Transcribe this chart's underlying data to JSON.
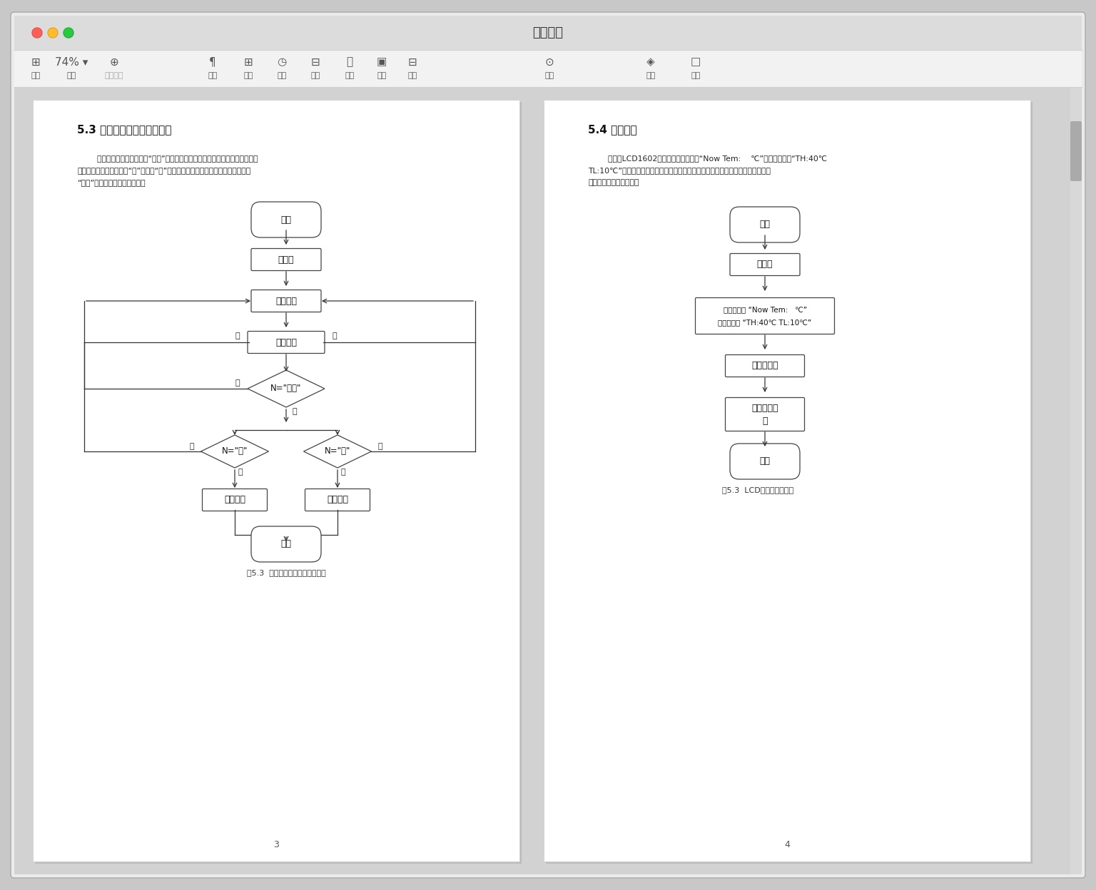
{
  "title": "软件设计",
  "bg_outer": "#c8c8c8",
  "window_bg": "#ebebeb",
  "page_bg": "#ffffff",
  "red_btn": "#ff5f57",
  "yellow_btn": "#ffbd2e",
  "green_btn": "#28c840",
  "section1_title": "5.3 上下限温度阈値调整程序",
  "section2_title": "5.4 显示程序",
  "para1_lines": [
    "        初始化按键，如果检测到“设置”按键按下，则进入修改最高温度値和最低温度",
    "値模式，此模式通过按键“加”和按键“减”调节最高温度値和最低温度値，再次按下",
    "“设置”按键，则退出修改模式。"
  ],
  "para2_lines": [
    "        初始化LCD1602，刚开始第一行显示“Now Tem:    ℃”，第二行显示“TH:40℃",
    "TL:10℃”。后面读取实时环境温度値后填入第一行的冒号后，第二行的上下限値显",
    "示可通过按键进行调整。"
  ],
  "caption1": "图5.3  上下限温度阈値调整流程图",
  "caption2": "图5.3  LCD显示运行流程图",
  "page_num_left": "3",
  "page_num_right": "4",
  "disp_box_line1": "第一行显示 “Now Tem:   ℃”",
  "disp_box_line2": "第二行显示 “TH:40℃ TL:10℃”"
}
